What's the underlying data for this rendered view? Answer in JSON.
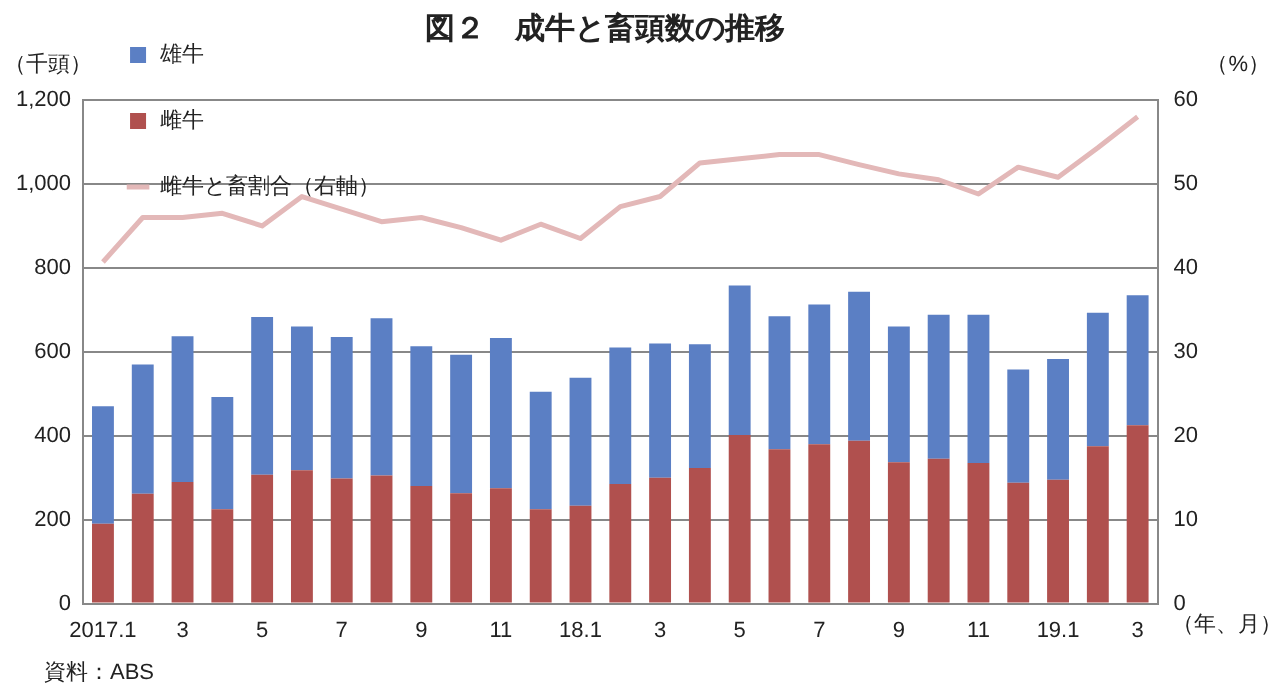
{
  "chart_data": {
    "type": "bar",
    "title": "図２　成牛と畜頭数の推移",
    "ylabel": "（千頭）",
    "y2label": "（%）",
    "xlabel": "（年、月）",
    "annotations": [
      "資料：ABS"
    ],
    "categories": [
      "2017.1",
      null,
      "3",
      null,
      "5",
      null,
      "7",
      null,
      "9",
      null,
      "11",
      null,
      "18.1",
      null,
      "3",
      null,
      "5",
      null,
      "7",
      null,
      "9",
      null,
      "11",
      null,
      "19.1",
      null,
      "3"
    ],
    "stacked": true,
    "grid": "y",
    "legend": "top left",
    "marker": "none",
    "line_style": "solid",
    "ylim": [
      0,
      1200
    ],
    "yticks": [
      0,
      200,
      400,
      600,
      800,
      {
        "value": 1000,
        "label": "1,000"
      },
      {
        "value": 1200,
        "label": "1,200"
      }
    ],
    "y2lim": [
      0,
      60
    ],
    "y2ticks": [
      0,
      10,
      20,
      30,
      40,
      50,
      60
    ],
    "series": [
      {
        "name": "雌牛",
        "color": "#b0504e",
        "values": [
          190,
          262,
          290,
          225,
          307,
          318,
          298,
          305,
          280,
          263,
          275,
          225,
          233,
          285,
          300,
          323,
          402,
          368,
          380,
          388,
          337,
          345,
          335,
          288,
          295,
          375,
          425
        ]
      },
      {
        "name": "雄牛",
        "color": "#5b7fc4",
        "values": [
          280,
          308,
          347,
          267,
          376,
          342,
          337,
          375,
          333,
          330,
          358,
          280,
          305,
          325,
          320,
          295,
          356,
          317,
          333,
          355,
          323,
          343,
          353,
          270,
          288,
          318,
          310
        ]
      },
      {
        "name": "雌牛と畜割合（右軸）",
        "type": "line",
        "axis": "y2",
        "color": "#e3b8b8",
        "values": [
          40.7,
          46,
          46,
          46.5,
          45,
          48.5,
          47,
          45.5,
          46,
          44.8,
          43.3,
          45.2,
          43.5,
          47.3,
          48.5,
          52.5,
          53,
          53.5,
          53.5,
          52.3,
          51.2,
          50.5,
          48.8,
          52,
          50.8,
          54.3,
          58
        ]
      }
    ]
  }
}
